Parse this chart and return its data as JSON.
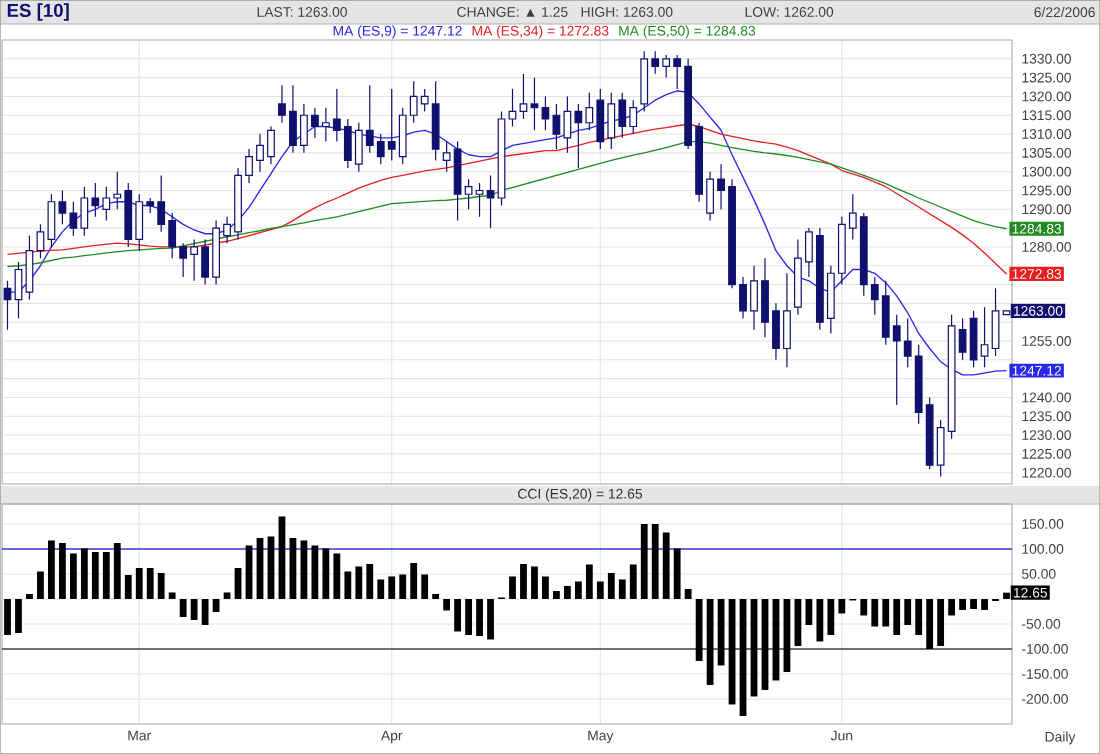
{
  "chart_data": [
    {
      "type": "candlestick",
      "title": "ES [10]",
      "color": "#10106e",
      "annotations": [
        "LAST: 1263.00",
        "CHANGE: ▲ 1.25",
        "HIGH: 1263.00",
        "LOW: 1262.00",
        "6/22/2006",
        "1263.00"
      ],
      "categories": [
        null,
        null,
        null,
        null,
        null,
        null,
        null,
        null,
        null,
        null,
        null,
        null,
        null,
        null,
        null,
        null,
        null,
        null,
        null,
        null,
        null,
        null,
        null,
        null,
        null,
        null,
        null,
        null,
        null,
        null,
        null,
        null,
        null,
        null,
        null,
        null,
        null,
        null,
        null,
        null,
        null,
        null,
        null,
        null,
        null,
        null,
        null,
        null,
        null,
        null,
        null,
        null,
        null,
        null,
        null,
        null,
        null,
        null,
        null,
        null,
        null,
        null,
        null,
        null,
        null,
        null,
        null,
        null,
        null,
        null,
        null,
        null,
        null,
        null,
        null,
        null,
        null,
        null,
        null,
        null,
        null,
        null,
        null,
        null,
        null,
        null,
        null,
        null,
        null,
        null,
        null,
        null
      ],
      "ohlc": [
        [
          1269,
          1271,
          1258,
          1266
        ],
        [
          1266,
          1276,
          1261,
          1274
        ],
        [
          1268,
          1283,
          1266,
          1279
        ],
        [
          1279,
          1286,
          1277,
          1284
        ],
        [
          1282,
          1294,
          1280,
          1292
        ],
        [
          1292,
          1295,
          1286,
          1289
        ],
        [
          1289,
          1292,
          1283,
          1285
        ],
        [
          1285,
          1296,
          1283,
          1293
        ],
        [
          1293,
          1297,
          1288,
          1291
        ],
        [
          1290,
          1296,
          1287,
          1293
        ],
        [
          1293,
          1300,
          1290,
          1294
        ],
        [
          1295,
          1297,
          1280,
          1282
        ],
        [
          1282,
          1294,
          1279,
          1292
        ],
        [
          1292,
          1293,
          1289,
          1291
        ],
        [
          1292,
          1299,
          1284,
          1286
        ],
        [
          1287,
          1289,
          1277,
          1280
        ],
        [
          1280,
          1281,
          1272,
          1277
        ],
        [
          1278,
          1282,
          1271,
          1280
        ],
        [
          1280,
          1282,
          1270,
          1272
        ],
        [
          1272,
          1287,
          1270,
          1285
        ],
        [
          1283,
          1288,
          1281,
          1286
        ],
        [
          1284,
          1301,
          1282,
          1299
        ],
        [
          1299,
          1306,
          1297,
          1304
        ],
        [
          1303,
          1310,
          1300,
          1307
        ],
        [
          1304,
          1312,
          1302,
          1311
        ],
        [
          1318,
          1323,
          1313,
          1315
        ],
        [
          1316,
          1323,
          1305,
          1307
        ],
        [
          1307,
          1318,
          1305,
          1315
        ],
        [
          1315,
          1317,
          1309,
          1312
        ],
        [
          1312,
          1317,
          1308,
          1313
        ],
        [
          1314,
          1322,
          1308,
          1311
        ],
        [
          1312,
          1314,
          1301,
          1303
        ],
        [
          1302,
          1313,
          1300,
          1311
        ],
        [
          1311,
          1323,
          1305,
          1307
        ],
        [
          1308,
          1310,
          1302,
          1304
        ],
        [
          1308,
          1322,
          1303,
          1306
        ],
        [
          1304,
          1317,
          1302,
          1315
        ],
        [
          1315,
          1324,
          1313,
          1320
        ],
        [
          1318,
          1322,
          1316,
          1320
        ],
        [
          1318,
          1324,
          1303,
          1306
        ],
        [
          1303,
          1308,
          1300,
          1305
        ],
        [
          1306,
          1308,
          1287,
          1294
        ],
        [
          1294,
          1298,
          1290,
          1296
        ],
        [
          1294,
          1297,
          1288,
          1295
        ],
        [
          1295,
          1299,
          1285,
          1293
        ],
        [
          1293,
          1316,
          1291,
          1314
        ],
        [
          1314,
          1322,
          1312,
          1316
        ],
        [
          1316,
          1326,
          1314,
          1318
        ],
        [
          1318,
          1325,
          1311,
          1317
        ],
        [
          1317,
          1320,
          1311,
          1314
        ],
        [
          1315,
          1318,
          1306,
          1310
        ],
        [
          1309,
          1320,
          1305,
          1316
        ],
        [
          1316,
          1318,
          1301,
          1313
        ],
        [
          1313,
          1321,
          1311,
          1317
        ],
        [
          1319,
          1322,
          1306,
          1308
        ],
        [
          1309,
          1321,
          1306,
          1318
        ],
        [
          1319,
          1321,
          1309,
          1312
        ],
        [
          1312,
          1319,
          1310,
          1317
        ],
        [
          1318,
          1332,
          1316,
          1330
        ],
        [
          1330,
          1332,
          1326,
          1328
        ],
        [
          1328,
          1331,
          1325,
          1330
        ],
        [
          1330,
          1331,
          1322,
          1328
        ],
        [
          1328,
          1330,
          1306,
          1307
        ],
        [
          1312,
          1313,
          1292,
          1294
        ],
        [
          1289,
          1300,
          1287,
          1298
        ],
        [
          1298,
          1302,
          1290,
          1295
        ],
        [
          1296,
          1298,
          1269,
          1270
        ],
        [
          1270,
          1272,
          1261,
          1263
        ],
        [
          1263,
          1275,
          1258,
          1271
        ],
        [
          1271,
          1277,
          1256,
          1260
        ],
        [
          1263,
          1265,
          1250,
          1253
        ],
        [
          1253,
          1273,
          1248,
          1263
        ],
        [
          1264,
          1282,
          1262,
          1277
        ],
        [
          1276,
          1285,
          1272,
          1284
        ],
        [
          1283,
          1285,
          1258,
          1260
        ],
        [
          1261,
          1275,
          1257,
          1273
        ],
        [
          1273,
          1288,
          1270,
          1286
        ],
        [
          1285,
          1294,
          1282,
          1289
        ],
        [
          1288,
          1289,
          1267,
          1270
        ],
        [
          1270,
          1272,
          1262,
          1266
        ],
        [
          1267,
          1271,
          1254,
          1256
        ],
        [
          1259,
          1262,
          1238,
          1255
        ],
        [
          1255,
          1261,
          1248,
          1251
        ],
        [
          1251,
          1254,
          1233,
          1236
        ],
        [
          1238,
          1240,
          1221,
          1222
        ],
        [
          1222,
          1234,
          1219,
          1232
        ],
        [
          1231,
          1262,
          1229,
          1259
        ],
        [
          1258,
          1261,
          1250,
          1252
        ],
        [
          1261,
          1263,
          1248,
          1250
        ],
        [
          1251,
          1264,
          1248,
          1254
        ],
        [
          1253,
          1269,
          1251,
          1263
        ],
        [
          1262,
          1263,
          1262,
          1263
        ]
      ],
      "series": [
        {
          "name": "MA (ES,9) = 1247.12",
          "type": "line",
          "color": "#2828e6",
          "values": [
            1268,
            1268,
            1271,
            1275,
            1280,
            1284,
            1287,
            1289,
            1290,
            1291.5,
            1292,
            1292,
            1291,
            1291,
            1290,
            1288,
            1286,
            1284.5,
            1283.5,
            1283.5,
            1284.5,
            1287,
            1290.5,
            1295,
            1299.5,
            1304,
            1308,
            1310,
            1312,
            1312,
            1311.5,
            1311,
            1310,
            1309.5,
            1309,
            1309,
            1309.5,
            1310.5,
            1311,
            1310,
            1308,
            1306,
            1304.5,
            1304,
            1304,
            1305.5,
            1307,
            1307.5,
            1308,
            1308.5,
            1309,
            1310,
            1311,
            1311.5,
            1312.5,
            1313.5,
            1314,
            1315,
            1317,
            1319,
            1320.5,
            1321.5,
            1321,
            1318,
            1314.5,
            1311,
            1304.5,
            1298.5,
            1292.5,
            1286,
            1279,
            1275,
            1272,
            1271,
            1269,
            1268,
            1271,
            1274,
            1274,
            1273,
            1270.5,
            1267,
            1262.5,
            1257,
            1253,
            1249.5,
            1247.5,
            1246,
            1246,
            1246.5,
            1247,
            1247.12
          ],
          "value_labels": [
            null,
            null,
            null,
            null,
            null,
            null,
            null,
            null,
            null,
            null,
            null,
            null,
            null,
            null,
            null,
            null,
            null,
            null,
            null,
            null,
            null,
            null,
            null,
            null,
            null,
            null,
            null,
            null,
            null,
            null,
            null,
            null,
            null,
            null,
            null,
            null,
            null,
            null,
            null,
            null,
            null,
            null,
            null,
            null,
            null,
            null,
            null,
            null,
            null,
            null,
            null,
            null,
            null,
            null,
            null,
            null,
            null,
            null,
            null,
            null,
            null,
            null,
            null,
            null,
            null,
            null,
            null,
            null,
            null,
            null,
            null,
            null,
            null,
            null,
            null,
            null,
            null,
            null,
            null,
            null,
            null,
            null,
            null,
            null,
            null,
            null,
            null,
            null,
            null,
            null,
            null,
            "1247.12"
          ]
        },
        {
          "name": "MA (ES,34) = 1272.83",
          "type": "line",
          "color": "#e62020",
          "values": [
            1278,
            1278.3,
            1278.6,
            1278.9,
            1279.1,
            1279.2,
            1279.6,
            1280,
            1280.4,
            1280.7,
            1281,
            1280.8,
            1280.5,
            1280.2,
            1280,
            1280,
            1280,
            1280,
            1280.5,
            1281,
            1281.5,
            1282.2,
            1283,
            1283.8,
            1284.6,
            1285.4,
            1287,
            1288.8,
            1290.4,
            1291.8,
            1293,
            1294.3,
            1295.6,
            1296.7,
            1297.7,
            1298.5,
            1299,
            1299.6,
            1300.2,
            1300.6,
            1301,
            1301.6,
            1302.2,
            1302.8,
            1303.4,
            1304,
            1304.4,
            1304.8,
            1305.2,
            1305.6,
            1305.6,
            1306.3,
            1307,
            1307.8,
            1308.4,
            1309,
            1309.6,
            1310.2,
            1310.8,
            1311.3,
            1311.7,
            1312.2,
            1312.6,
            1312,
            1311,
            1310,
            1309.4,
            1308.8,
            1308.2,
            1307.7,
            1307.3,
            1306.5,
            1305.6,
            1304.4,
            1303.2,
            1302,
            1300.3,
            1299.4,
            1298.5,
            1297.2,
            1296,
            1294.2,
            1292.4,
            1290.6,
            1288.8,
            1287,
            1285.2,
            1283.2,
            1281,
            1278.4,
            1275.6,
            1272.83
          ],
          "value_labels": [
            null,
            null,
            null,
            null,
            null,
            null,
            null,
            null,
            null,
            null,
            null,
            null,
            null,
            null,
            null,
            null,
            null,
            null,
            null,
            null,
            null,
            null,
            null,
            null,
            null,
            null,
            null,
            null,
            null,
            null,
            null,
            null,
            null,
            null,
            null,
            null,
            null,
            null,
            null,
            null,
            null,
            null,
            null,
            null,
            null,
            null,
            null,
            null,
            null,
            null,
            null,
            null,
            null,
            null,
            null,
            null,
            null,
            null,
            null,
            null,
            null,
            null,
            null,
            null,
            null,
            null,
            null,
            null,
            null,
            null,
            null,
            null,
            null,
            null,
            null,
            null,
            null,
            null,
            null,
            null,
            null,
            null,
            null,
            null,
            null,
            null,
            null,
            null,
            null,
            null,
            null,
            "1272.83"
          ]
        },
        {
          "name": "MA (ES,50) = 1284.83",
          "type": "line",
          "color": "#218a21",
          "values": [
            1274.8,
            1275,
            1275.3,
            1275.8,
            1276.4,
            1277,
            1277.3,
            1277.7,
            1278,
            1278.4,
            1278.7,
            1279,
            1279.2,
            1279.4,
            1279.6,
            1279.7,
            1280.3,
            1280.9,
            1281.5,
            1282.1,
            1282.7,
            1283.2,
            1283.8,
            1284.3,
            1284.9,
            1285.4,
            1285.9,
            1286.4,
            1287,
            1287.5,
            1288,
            1288.7,
            1289.4,
            1290.1,
            1290.8,
            1291.5,
            1291.7,
            1291.9,
            1292.1,
            1292.3,
            1292.4,
            1292.7,
            1293,
            1293.4,
            1293.7,
            1295,
            1295.8,
            1296.6,
            1297.4,
            1298.2,
            1299,
            1299.8,
            1300.6,
            1301.4,
            1302.2,
            1303,
            1303.7,
            1304.4,
            1305,
            1305.7,
            1306.4,
            1307.2,
            1308,
            1308,
            1307.6,
            1307,
            1306.4,
            1305.9,
            1305.4,
            1305,
            1304.7,
            1304.3,
            1303.8,
            1303.2,
            1302.6,
            1302,
            1301,
            1300,
            1299,
            1297.9,
            1296.8,
            1295.5,
            1294.3,
            1293,
            1291.8,
            1290.6,
            1289.4,
            1288.2,
            1287,
            1286.1,
            1285.4,
            1284.83
          ],
          "value_labels": [
            null,
            null,
            null,
            null,
            null,
            null,
            null,
            null,
            null,
            null,
            null,
            null,
            null,
            null,
            null,
            null,
            null,
            null,
            null,
            null,
            null,
            null,
            null,
            null,
            null,
            null,
            null,
            null,
            null,
            null,
            null,
            null,
            null,
            null,
            null,
            null,
            null,
            null,
            null,
            null,
            null,
            null,
            null,
            null,
            null,
            null,
            null,
            null,
            null,
            null,
            null,
            null,
            null,
            null,
            null,
            null,
            null,
            null,
            null,
            null,
            null,
            null,
            null,
            null,
            null,
            null,
            null,
            null,
            null,
            null,
            null,
            null,
            null,
            null,
            null,
            null,
            null,
            null,
            null,
            null,
            null,
            null,
            null,
            null,
            null,
            null,
            null,
            null,
            null,
            null,
            null,
            "1284.83"
          ]
        }
      ],
      "ylim": [
        1217,
        1335
      ],
      "yticks": [
        {
          "value": 1220,
          "label": "1220.00"
        },
        {
          "value": 1225,
          "label": "1225.00"
        },
        {
          "value": 1230,
          "label": "1230.00"
        },
        {
          "value": 1235,
          "label": "1235.00"
        },
        {
          "value": 1240,
          "label": "1240.00"
        },
        {
          "value": 1245,
          "label": null
        },
        {
          "value": 1250,
          "label": null
        },
        {
          "value": 1255,
          "label": "1255.00"
        },
        {
          "value": 1260,
          "label": null
        },
        {
          "value": 1265,
          "label": null
        },
        {
          "value": 1270,
          "label": null
        },
        {
          "value": 1275,
          "label": null
        },
        {
          "value": 1280,
          "label": "1280.00"
        },
        {
          "value": 1285,
          "label": null
        },
        {
          "value": 1290,
          "label": "1290.00"
        },
        {
          "value": 1295,
          "label": "1295.00"
        },
        {
          "value": 1300,
          "label": "1300.00"
        },
        {
          "value": 1305,
          "label": "1305.00"
        },
        {
          "value": 1310,
          "label": "1310.00"
        },
        {
          "value": 1315,
          "label": "1315.00"
        },
        {
          "value": 1320,
          "label": "1320.00"
        },
        {
          "value": 1325,
          "label": "1325.00"
        },
        {
          "value": 1330,
          "label": "1330.00"
        }
      ],
      "grid": true,
      "legend": "top",
      "tick_labels": "y"
    },
    {
      "type": "bar",
      "title": "CCI (ES,20) = 12.65",
      "annotations": [
        "Daily",
        "12.65"
      ],
      "categories": [
        null,
        null,
        null,
        null,
        null,
        null,
        null,
        null,
        null,
        null,
        null,
        null,
        "Mar",
        null,
        null,
        null,
        null,
        null,
        null,
        null,
        null,
        null,
        null,
        null,
        null,
        null,
        null,
        null,
        null,
        null,
        null,
        null,
        null,
        null,
        null,
        "Apr",
        null,
        null,
        null,
        null,
        null,
        null,
        null,
        null,
        null,
        null,
        null,
        null,
        null,
        null,
        null,
        null,
        null,
        null,
        "May",
        null,
        null,
        null,
        null,
        null,
        null,
        null,
        null,
        null,
        null,
        null,
        null,
        null,
        null,
        null,
        null,
        null,
        null,
        null,
        null,
        null,
        "Jun",
        null,
        null,
        null,
        null,
        null,
        null,
        null,
        null,
        null,
        null,
        null,
        null,
        null,
        null,
        null
      ],
      "series": [
        {
          "color": "#000000",
          "values": [
            -72,
            -68,
            10,
            55,
            117,
            112,
            91,
            101,
            94,
            94,
            112,
            48,
            62,
            62,
            52,
            13,
            -36,
            -42,
            -52,
            -26,
            13,
            62,
            107,
            122,
            125,
            165,
            122,
            117,
            107,
            101,
            91,
            55,
            65,
            70,
            39,
            45,
            49,
            72,
            49,
            10,
            -23,
            -65,
            -72,
            -74,
            -81,
            3,
            45,
            70,
            65,
            45,
            16,
            26,
            35,
            69,
            35,
            52,
            39,
            69,
            150,
            150,
            133,
            101,
            20,
            -124,
            -172,
            -133,
            -211,
            -234,
            -195,
            -182,
            -163,
            -146,
            -94,
            -52,
            -85,
            -72,
            -29,
            -3,
            -33,
            -55,
            -55,
            -72,
            -52,
            -72,
            -100,
            -94,
            -33,
            -22,
            -20,
            -22,
            -4,
            12.65
          ]
        }
      ],
      "ylim": [
        -250,
        190
      ],
      "yticks": [
        {
          "value": -200,
          "label": "-200.00"
        },
        {
          "value": -150,
          "label": "-150.00"
        },
        {
          "value": -100,
          "label": "-100.00"
        },
        {
          "value": -50,
          "label": "-50.00"
        },
        {
          "value": 0,
          "label": null
        },
        {
          "value": 50,
          "label": "50.00"
        },
        {
          "value": 100,
          "label": "100.00"
        },
        {
          "value": 150,
          "label": "150.00"
        }
      ],
      "ref_lines": [
        {
          "axis": "y",
          "value": 100,
          "color": "#3a3ad8"
        },
        {
          "axis": "y",
          "value": -100,
          "color": "#444444"
        }
      ],
      "grid": true
    }
  ]
}
